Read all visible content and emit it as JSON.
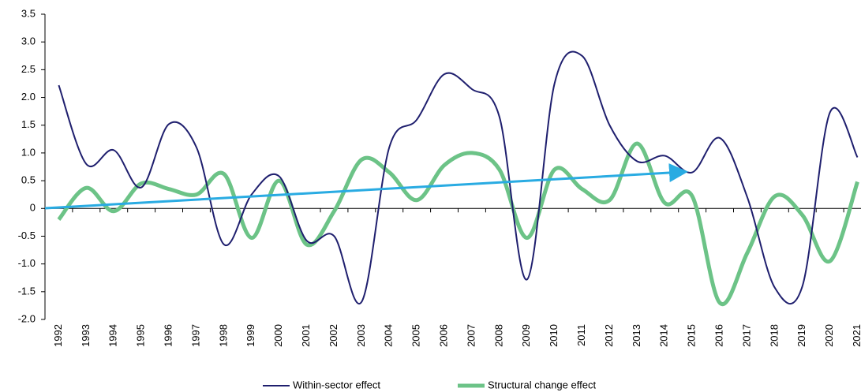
{
  "chart_data": {
    "type": "line",
    "categories": [
      "1992",
      "1993",
      "1994",
      "1995",
      "1996",
      "1997",
      "1998",
      "1999",
      "2000",
      "2001",
      "2002",
      "2003",
      "2004",
      "2005",
      "2006",
      "2007",
      "2008",
      "2009",
      "2010",
      "2011",
      "2012",
      "2013",
      "2014",
      "2015",
      "2016",
      "2017",
      "2018",
      "2019",
      "2020",
      "2021"
    ],
    "series": [
      {
        "name": "Within-sector effect",
        "color": "#1f1f6e",
        "width": 2,
        "values": [
          2.22,
          0.8,
          1.05,
          0.38,
          1.52,
          1.1,
          -0.65,
          0.25,
          0.58,
          -0.58,
          -0.5,
          -1.68,
          1.1,
          1.6,
          2.42,
          2.15,
          1.65,
          -1.28,
          2.25,
          2.75,
          1.5,
          0.85,
          0.95,
          0.65,
          1.27,
          0.2,
          -1.43,
          -1.4,
          1.73,
          0.92
        ]
      },
      {
        "name": "Structural change effect",
        "color": "#6cc387",
        "width": 5,
        "values": [
          -0.2,
          0.37,
          -0.05,
          0.45,
          0.35,
          0.25,
          0.62,
          -0.53,
          0.5,
          -0.65,
          -0.05,
          0.88,
          0.65,
          0.15,
          0.78,
          1.0,
          0.7,
          -0.53,
          0.7,
          0.35,
          0.15,
          1.17,
          0.1,
          0.22,
          -1.7,
          -0.8,
          0.22,
          -0.12,
          -0.95,
          0.48
        ]
      }
    ],
    "ylim": [
      -2.0,
      3.5
    ],
    "yticks": [
      {
        "value": -2.0,
        "label": "-2.0"
      },
      {
        "value": -1.5,
        "label": "-1.5"
      },
      {
        "value": -1.0,
        "label": "-1.0"
      },
      -0.5,
      0,
      0.5,
      {
        "value": 1.0,
        "label": "1.0"
      },
      1.5,
      {
        "value": 2.0,
        "label": "2.0"
      },
      2.5,
      {
        "value": 3.0,
        "label": "3.0"
      },
      3.5
    ],
    "grid": false
  }
}
